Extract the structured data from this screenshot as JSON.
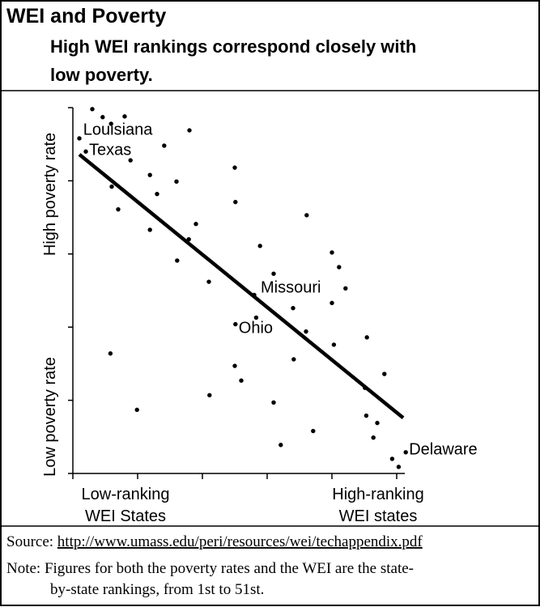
{
  "chart_data": {
    "type": "scatter",
    "title": "WEI and Poverty",
    "subtitle": [
      "High WEI rankings correspond closely with",
      "low poverty."
    ],
    "x_labels": {
      "low": [
        "Low-ranking",
        "WEI States"
      ],
      "high": [
        "High-ranking",
        "WEI states"
      ]
    },
    "y_labels": {
      "high": "High poverty rate",
      "low": "Low poverty rate"
    },
    "color": "#000000",
    "x": [
      1.0,
      2.0,
      3.0,
      4.6,
      5.9,
      8.0,
      8.9,
      14.1,
      18.0,
      11.9,
      6.0,
      13.0,
      16.0,
      7.0,
      11.9,
      19.0,
      17.9,
      16.1,
      21.0,
      25.0,
      25.1,
      28.9,
      36.1,
      31.0,
      28.0,
      28.3,
      25.1,
      34.0,
      36.0,
      40.0,
      41.1,
      42.1,
      40.0,
      40.3,
      45.4,
      34.1,
      5.8,
      25.0,
      26.0,
      21.1,
      9.9,
      31.0,
      45.1,
      48.1,
      45.3,
      47.0,
      46.4,
      37.1,
      32.1,
      49.3,
      51.4,
      50.3
    ],
    "values": [
      45.8,
      44.0,
      49.8,
      48.7,
      47.8,
      48.8,
      42.8,
      44.8,
      46.9,
      40.8,
      39.2,
      38.2,
      39.9,
      36.1,
      33.3,
      34.1,
      32.0,
      29.1,
      26.2,
      41.8,
      37.1,
      31.1,
      35.3,
      27.3,
      24.4,
      21.3,
      20.4,
      22.6,
      19.4,
      30.2,
      28.2,
      25.3,
      23.3,
      17.6,
      18.6,
      15.6,
      16.4,
      14.7,
      12.7,
      10.7,
      8.7,
      9.7,
      11.7,
      13.6,
      7.9,
      6.9,
      4.9,
      5.8,
      3.9,
      2.0,
      2.9,
      0.9
    ],
    "trend_line": {
      "x": [
        1.0,
        51.0
      ],
      "y": [
        43.6,
        7.6
      ]
    },
    "annotations": [
      {
        "text": "Louisiana",
        "x": 1.6,
        "y": 46.9
      },
      {
        "text": "Texas",
        "x": 2.5,
        "y": 44.1
      },
      {
        "text": "Missouri",
        "x": 29.0,
        "y": 25.3
      },
      {
        "text": "Ohio",
        "x": 25.6,
        "y": 19.8
      },
      {
        "text": "Delaware",
        "x": 51.9,
        "y": 3.2
      }
    ],
    "xlim": [
      0,
      52
    ],
    "ylim": [
      0,
      50
    ],
    "xticks": [
      0,
      10,
      20,
      30,
      40,
      50
    ],
    "yticks": [
      0,
      10,
      20,
      30,
      40,
      50
    ],
    "source_label": "Source:",
    "source_url": "http://www.umass.edu/peri/resources/wei/techappendix.pdf",
    "note": [
      "Note: Figures for both the poverty rates and the WEI are the state-",
      "by-state rankings, from 1st to 51st."
    ]
  }
}
